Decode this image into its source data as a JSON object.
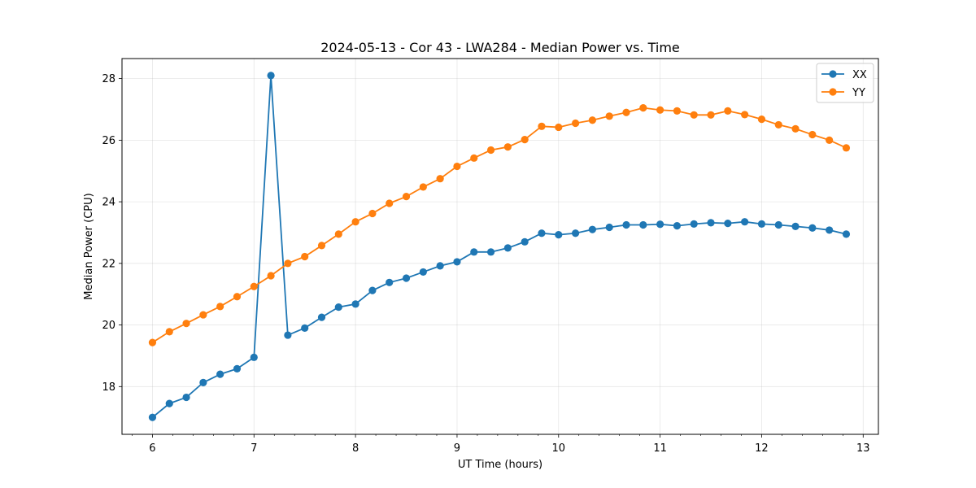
{
  "chart_data": {
    "type": "line",
    "title": "2024-05-13 - Cor 43 - LWA284 - Median Power vs. Time",
    "xlabel": "UT Time (hours)",
    "ylabel": "Median Power (CPU)",
    "xlim": [
      5.7,
      13.15
    ],
    "ylim": [
      16.45,
      28.65
    ],
    "xticks": [
      6,
      7,
      8,
      9,
      10,
      11,
      12,
      13
    ],
    "yticks": [
      18,
      20,
      22,
      24,
      26,
      28
    ],
    "minor_xtick_step": 0.2,
    "grid": true,
    "legend_position": "top-right",
    "x": [
      6.0,
      6.1667,
      6.3333,
      6.5,
      6.6667,
      6.8333,
      7.0,
      7.1667,
      7.3333,
      7.5,
      7.6667,
      7.8333,
      8.0,
      8.1667,
      8.3333,
      8.5,
      8.6667,
      8.8333,
      9.0,
      9.1667,
      9.3333,
      9.5,
      9.6667,
      9.8333,
      10.0,
      10.1667,
      10.3333,
      10.5,
      10.6667,
      10.8333,
      11.0,
      11.1667,
      11.3333,
      11.5,
      11.6667,
      11.8333,
      12.0,
      12.1667,
      12.3333,
      12.5,
      12.6667,
      12.8333
    ],
    "series": [
      {
        "name": "XX",
        "color": "#1f77b4",
        "values": [
          17.0,
          17.45,
          17.65,
          18.13,
          18.4,
          18.58,
          18.95,
          28.1,
          19.67,
          19.9,
          20.25,
          20.58,
          20.68,
          21.12,
          21.38,
          21.52,
          21.72,
          21.92,
          22.05,
          22.37,
          22.37,
          22.5,
          22.7,
          22.98,
          22.93,
          22.98,
          23.1,
          23.17,
          23.25,
          23.25,
          23.27,
          23.22,
          23.28,
          23.32,
          23.3,
          23.35,
          23.28,
          23.25,
          23.2,
          23.15,
          23.08,
          22.95
        ]
      },
      {
        "name": "YY",
        "color": "#ff7f0e",
        "values": [
          19.43,
          19.78,
          20.05,
          20.33,
          20.6,
          20.92,
          21.25,
          21.6,
          22.0,
          22.22,
          22.58,
          22.95,
          23.35,
          23.62,
          23.95,
          24.17,
          24.48,
          24.75,
          25.15,
          25.42,
          25.68,
          25.78,
          26.02,
          26.45,
          26.42,
          26.55,
          26.65,
          26.78,
          26.9,
          27.05,
          26.98,
          26.95,
          26.82,
          26.82,
          26.95,
          26.83,
          26.68,
          26.5,
          26.37,
          26.18,
          26.0,
          25.75
        ]
      }
    ]
  }
}
